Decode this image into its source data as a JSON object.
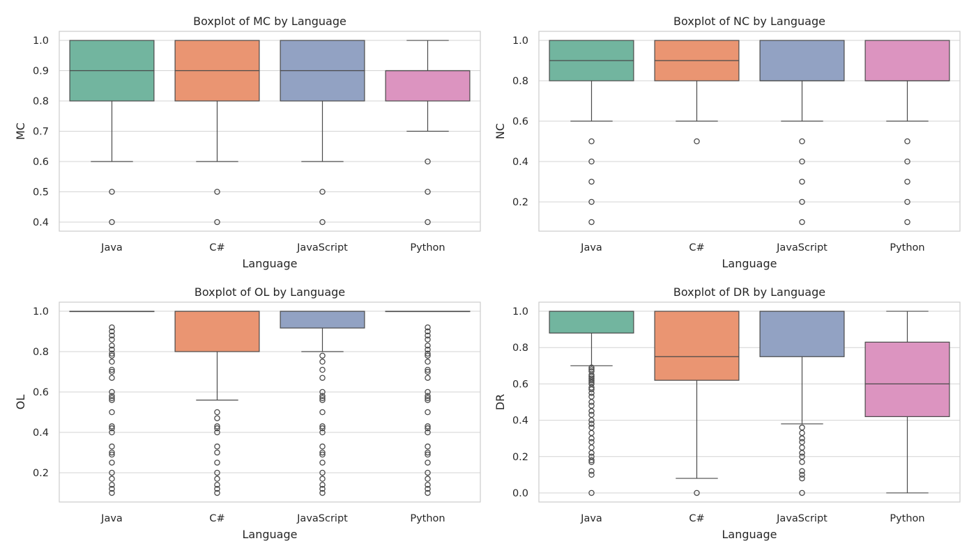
{
  "chart_data": [
    {
      "type": "boxplot",
      "title": "Boxplot of MC by Language",
      "xlabel": "Language",
      "ylabel": "MC",
      "ylim": [
        0.37,
        1.03
      ],
      "yticks": [
        0.4,
        0.5,
        0.6,
        0.7,
        0.8,
        0.9,
        1.0
      ],
      "ytick_labels": [
        "0.4",
        "0.5",
        "0.6",
        "0.7",
        "0.8",
        "0.9",
        "1.0"
      ],
      "grid": "horizontal",
      "categories": [
        "Java",
        "C#",
        "JavaScript",
        "Python"
      ],
      "colors": [
        "#72b59f",
        "#ea9572",
        "#92a2c3",
        "#dc94c0"
      ],
      "boxes": [
        {
          "whisker_low": 0.6,
          "q1": 0.8,
          "median": 0.9,
          "q3": 1.0,
          "whisker_high": 1.0,
          "fliers": [
            0.5,
            0.4
          ]
        },
        {
          "whisker_low": 0.6,
          "q1": 0.8,
          "median": 0.9,
          "q3": 1.0,
          "whisker_high": 1.0,
          "fliers": [
            0.5,
            0.4
          ]
        },
        {
          "whisker_low": 0.6,
          "q1": 0.8,
          "median": 0.9,
          "q3": 1.0,
          "whisker_high": 1.0,
          "fliers": [
            0.5,
            0.4
          ]
        },
        {
          "whisker_low": 0.7,
          "q1": 0.8,
          "median": 0.9,
          "q3": 0.9,
          "whisker_high": 1.0,
          "fliers": [
            0.6,
            0.5,
            0.4
          ]
        }
      ]
    },
    {
      "type": "boxplot",
      "title": "Boxplot of NC by Language",
      "xlabel": "Language",
      "ylabel": "NC",
      "ylim": [
        0.055,
        1.045
      ],
      "yticks": [
        0.2,
        0.4,
        0.6,
        0.8,
        1.0
      ],
      "ytick_labels": [
        "0.2",
        "0.4",
        "0.6",
        "0.8",
        "1.0"
      ],
      "grid": "horizontal",
      "categories": [
        "Java",
        "C#",
        "JavaScript",
        "Python"
      ],
      "colors": [
        "#72b59f",
        "#ea9572",
        "#92a2c3",
        "#dc94c0"
      ],
      "boxes": [
        {
          "whisker_low": 0.6,
          "q1": 0.8,
          "median": 0.9,
          "q3": 1.0,
          "whisker_high": 1.0,
          "fliers": [
            0.5,
            0.4,
            0.3,
            0.2,
            0.1
          ]
        },
        {
          "whisker_low": 0.6,
          "q1": 0.8,
          "median": 0.9,
          "q3": 1.0,
          "whisker_high": 1.0,
          "fliers": [
            0.5
          ]
        },
        {
          "whisker_low": 0.6,
          "q1": 0.8,
          "median": 0.8,
          "q3": 1.0,
          "whisker_high": 1.0,
          "fliers": [
            0.5,
            0.4,
            0.3,
            0.2,
            0.1
          ]
        },
        {
          "whisker_low": 0.6,
          "q1": 0.8,
          "median": 0.8,
          "q3": 1.0,
          "whisker_high": 1.0,
          "fliers": [
            0.5,
            0.4,
            0.3,
            0.2,
            0.1
          ]
        }
      ]
    },
    {
      "type": "boxplot",
      "title": "Boxplot of OL by Language",
      "xlabel": "Language",
      "ylabel": "OL",
      "ylim": [
        0.055,
        1.045
      ],
      "yticks": [
        0.2,
        0.4,
        0.6,
        0.8,
        1.0
      ],
      "ytick_labels": [
        "0.2",
        "0.4",
        "0.6",
        "0.8",
        "1.0"
      ],
      "grid": "horizontal",
      "categories": [
        "Java",
        "C#",
        "JavaScript",
        "Python"
      ],
      "colors": [
        "#72b59f",
        "#ea9572",
        "#92a2c3",
        "#dc94c0"
      ],
      "boxes": [
        {
          "whisker_low": 1.0,
          "q1": 1.0,
          "median": 1.0,
          "q3": 1.0,
          "whisker_high": 1.0,
          "fliers": [
            0.92,
            0.9,
            0.88,
            0.86,
            0.83,
            0.81,
            0.79,
            0.78,
            0.75,
            0.71,
            0.7,
            0.67,
            0.6,
            0.58,
            0.57,
            0.56,
            0.5,
            0.43,
            0.42,
            0.4,
            0.33,
            0.3,
            0.29,
            0.25,
            0.2,
            0.17,
            0.14,
            0.12,
            0.1
          ]
        },
        {
          "whisker_low": 0.56,
          "q1": 0.8,
          "median": 1.0,
          "q3": 1.0,
          "whisker_high": 1.0,
          "fliers": [
            0.5,
            0.47,
            0.43,
            0.42,
            0.4,
            0.33,
            0.3,
            0.25,
            0.2,
            0.17,
            0.14,
            0.12,
            0.1
          ]
        },
        {
          "whisker_low": 0.8,
          "q1": 0.917,
          "median": 1.0,
          "q3": 1.0,
          "whisker_high": 1.0,
          "fliers": [
            0.78,
            0.75,
            0.71,
            0.67,
            0.6,
            0.58,
            0.57,
            0.56,
            0.5,
            0.43,
            0.42,
            0.4,
            0.33,
            0.3,
            0.29,
            0.25,
            0.2,
            0.17,
            0.14,
            0.12,
            0.1
          ]
        },
        {
          "whisker_low": 1.0,
          "q1": 1.0,
          "median": 1.0,
          "q3": 1.0,
          "whisker_high": 1.0,
          "fliers": [
            0.92,
            0.9,
            0.88,
            0.86,
            0.83,
            0.81,
            0.79,
            0.78,
            0.75,
            0.71,
            0.7,
            0.67,
            0.6,
            0.58,
            0.57,
            0.56,
            0.5,
            0.43,
            0.42,
            0.4,
            0.33,
            0.3,
            0.29,
            0.25,
            0.2,
            0.17,
            0.14,
            0.12,
            0.1
          ]
        }
      ]
    },
    {
      "type": "boxplot",
      "title": "Boxplot of DR by Language",
      "xlabel": "Language",
      "ylabel": "DR",
      "ylim": [
        -0.05,
        1.05
      ],
      "yticks": [
        0.0,
        0.2,
        0.4,
        0.6,
        0.8,
        1.0
      ],
      "ytick_labels": [
        "0.0",
        "0.2",
        "0.4",
        "0.6",
        "0.8",
        "1.0"
      ],
      "grid": "horizontal",
      "categories": [
        "Java",
        "C#",
        "JavaScript",
        "Python"
      ],
      "colors": [
        "#72b59f",
        "#ea9572",
        "#92a2c3",
        "#dc94c0"
      ],
      "boxes": [
        {
          "whisker_low": 0.7,
          "q1": 0.88,
          "median": 1.0,
          "q3": 1.0,
          "whisker_high": 1.0,
          "fliers": [
            0.69,
            0.68,
            0.67,
            0.65,
            0.64,
            0.63,
            0.62,
            0.61,
            0.6,
            0.58,
            0.57,
            0.55,
            0.53,
            0.5,
            0.48,
            0.45,
            0.43,
            0.4,
            0.38,
            0.36,
            0.33,
            0.3,
            0.28,
            0.25,
            0.22,
            0.2,
            0.18,
            0.17,
            0.12,
            0.1,
            0.0
          ]
        },
        {
          "whisker_low": 0.08,
          "q1": 0.62,
          "median": 0.75,
          "q3": 1.0,
          "whisker_high": 1.0,
          "fliers": [
            0.0
          ]
        },
        {
          "whisker_low": 0.38,
          "q1": 0.75,
          "median": 1.0,
          "q3": 1.0,
          "whisker_high": 1.0,
          "fliers": [
            0.36,
            0.33,
            0.3,
            0.28,
            0.25,
            0.22,
            0.2,
            0.17,
            0.12,
            0.1,
            0.08,
            0.0
          ]
        },
        {
          "whisker_low": 0.0,
          "q1": 0.42,
          "median": 0.6,
          "q3": 0.83,
          "whisker_high": 1.0,
          "fliers": []
        }
      ]
    }
  ]
}
